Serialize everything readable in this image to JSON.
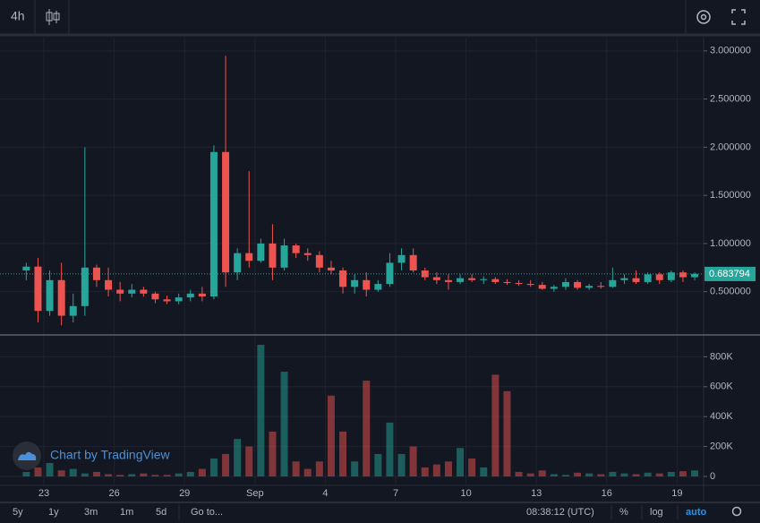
{
  "ui": {
    "interval": "4h",
    "watermark": "Chart by TradingView",
    "ranges": [
      "5y",
      "1y",
      "3m",
      "1m",
      "5d"
    ],
    "goto": "Go to...",
    "clock": "08:38:12 (UTC)",
    "buttons": [
      "%",
      "log",
      "auto"
    ]
  },
  "chart_data": {
    "type": "candlestick",
    "categories": [
      null,
      null,
      "23",
      null,
      null,
      null,
      null,
      null,
      "26",
      null,
      null,
      null,
      null,
      null,
      "29",
      null,
      null,
      null,
      null,
      null,
      "Sep",
      null,
      null,
      null,
      null,
      null,
      "4",
      null,
      null,
      null,
      null,
      null,
      "7",
      null,
      null,
      null,
      null,
      null,
      "10",
      null,
      null,
      null,
      null,
      null,
      "13",
      null,
      null,
      null,
      null,
      null,
      "16",
      null,
      null,
      null,
      null,
      null,
      "19",
      null
    ],
    "open": [
      0.72,
      0.76,
      0.3,
      0.62,
      0.25,
      0.35,
      0.75,
      0.62,
      0.52,
      0.48,
      0.52,
      0.48,
      0.42,
      0.4,
      0.44,
      0.48,
      0.45,
      1.95,
      0.7,
      0.9,
      0.82,
      1.0,
      0.75,
      0.98,
      0.9,
      0.88,
      0.75,
      0.72,
      0.55,
      0.62,
      0.52,
      0.58,
      0.8,
      0.88,
      0.72,
      0.65,
      0.62,
      0.6,
      0.64,
      0.62,
      0.63,
      0.6,
      0.59,
      0.58,
      0.57,
      0.53,
      0.55,
      0.6,
      0.54,
      0.56,
      0.55,
      0.62,
      0.64,
      0.6,
      0.68,
      0.62,
      0.7,
      0.65
    ],
    "high": [
      0.8,
      0.85,
      0.72,
      0.8,
      0.48,
      2.0,
      0.78,
      0.75,
      0.6,
      0.58,
      0.55,
      0.5,
      0.46,
      0.48,
      0.52,
      0.55,
      2.02,
      2.95,
      0.95,
      1.75,
      1.05,
      1.2,
      1.05,
      1.0,
      0.95,
      0.92,
      0.82,
      0.75,
      0.68,
      0.7,
      0.62,
      0.9,
      0.95,
      0.95,
      0.75,
      0.7,
      0.68,
      0.68,
      0.68,
      0.66,
      0.65,
      0.63,
      0.62,
      0.62,
      0.6,
      0.57,
      0.64,
      0.62,
      0.58,
      0.6,
      0.75,
      0.68,
      0.72,
      0.7,
      0.7,
      0.72,
      0.72,
      0.7
    ],
    "low": [
      0.62,
      0.18,
      0.25,
      0.15,
      0.18,
      0.25,
      0.55,
      0.45,
      0.4,
      0.44,
      0.45,
      0.38,
      0.37,
      0.37,
      0.4,
      0.4,
      0.42,
      0.55,
      0.62,
      0.75,
      0.8,
      0.62,
      0.72,
      0.85,
      0.82,
      0.7,
      0.68,
      0.48,
      0.48,
      0.45,
      0.5,
      0.55,
      0.72,
      0.7,
      0.62,
      0.58,
      0.52,
      0.58,
      0.6,
      0.58,
      0.58,
      0.57,
      0.56,
      0.55,
      0.52,
      0.5,
      0.52,
      0.52,
      0.52,
      0.53,
      0.54,
      0.58,
      0.58,
      0.58,
      0.58,
      0.6,
      0.6,
      0.62
    ],
    "close": [
      0.76,
      0.3,
      0.62,
      0.25,
      0.35,
      0.75,
      0.62,
      0.52,
      0.48,
      0.52,
      0.48,
      0.42,
      0.4,
      0.44,
      0.48,
      0.45,
      1.95,
      0.7,
      0.9,
      0.82,
      1.0,
      0.75,
      0.98,
      0.9,
      0.88,
      0.75,
      0.72,
      0.55,
      0.62,
      0.52,
      0.58,
      0.8,
      0.88,
      0.72,
      0.65,
      0.62,
      0.6,
      0.64,
      0.62,
      0.63,
      0.6,
      0.59,
      0.58,
      0.57,
      0.53,
      0.55,
      0.6,
      0.54,
      0.56,
      0.55,
      0.62,
      0.64,
      0.6,
      0.68,
      0.62,
      0.7,
      0.65,
      0.683794
    ],
    "up_color": "#26a69a",
    "down_color": "#ef5350",
    "grid": true,
    "ylim": [
      0.06,
      3.11
    ],
    "yticks": [
      {
        "value": 0.5,
        "label": "0.500000"
      },
      {
        "value": 1,
        "label": "1.000000"
      },
      {
        "value": 1.5,
        "label": "1.500000"
      },
      {
        "value": 2,
        "label": "2.000000"
      },
      {
        "value": 2.5,
        "label": "2.500000"
      },
      {
        "value": 3,
        "label": "3.000000"
      }
    ],
    "last_price": 0.683794,
    "volume": {
      "values": [
        30000,
        60000,
        90000,
        40000,
        50000,
        20000,
        30000,
        15000,
        10000,
        15000,
        20000,
        10000,
        10000,
        20000,
        30000,
        50000,
        120000,
        150000,
        250000,
        200000,
        880000,
        300000,
        700000,
        100000,
        50000,
        100000,
        540000,
        300000,
        100000,
        640000,
        150000,
        360000,
        150000,
        200000,
        60000,
        80000,
        100000,
        190000,
        120000,
        60000,
        680000,
        570000,
        30000,
        20000,
        40000,
        15000,
        10000,
        25000,
        20000,
        15000,
        30000,
        20000,
        15000,
        25000,
        20000,
        30000,
        35000,
        40000
      ],
      "ylim": [
        -60000,
        940000
      ],
      "yticks": [
        0,
        {
          "value": 200000,
          "label": "200K"
        },
        {
          "value": 400000,
          "label": "400K"
        },
        {
          "value": 600000,
          "label": "600K"
        },
        {
          "value": 800000,
          "label": "800K"
        }
      ]
    }
  }
}
